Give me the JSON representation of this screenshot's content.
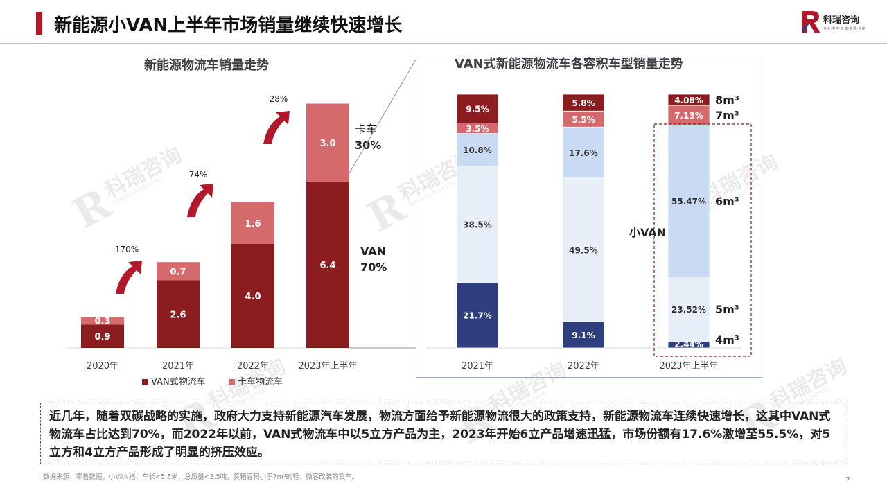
{
  "slide": {
    "title": "新能源小VAN上半年市场销量继续快速增长",
    "logo_name": "科瑞咨询",
    "logo_sub": "专业·专注·价值·前沿·合作",
    "page_number": "7",
    "brand_color": "#b1192a"
  },
  "watermark": {
    "name": "科瑞咨询",
    "sub": "KERUI CONSULTING"
  },
  "summary": {
    "text": "近几年，随着双碳战略的实施，政府大力支持新能源汽车发展，物流方面给予新能源物流很大的政策支持，新能源物流车连续快速增长，这其中VAN式物流车占比达到70%，而2022年以前，VAN式物流车中以5立方产品为主，2023年开始6立产品增速迅猛，市场份额有17.6%激增至55.5%，对5立方和4立方产品形成了明显的挤压效应。"
  },
  "footnote": "数据来源：零售数据，小VAN指：车长<5.5米，总质量<3.5吨，货箱容积小于7m³的轻、微客改装的货车。",
  "chart_data": [
    {
      "type": "bar",
      "stacked": true,
      "title": "新能源物流车销量走势",
      "categories": [
        "2020年",
        "2021年",
        "2022年",
        "2023年上半年"
      ],
      "series": [
        {
          "name": "VAN式物流车",
          "values": [
            0.9,
            2.6,
            4.0,
            6.4
          ],
          "color": "#8b1c1f"
        },
        {
          "name": "卡车物流车",
          "values": [
            0.3,
            0.7,
            1.6,
            3.0
          ],
          "color": "#d46a6c"
        }
      ],
      "growth_labels": [
        "170%",
        "74%",
        "28%"
      ],
      "share_labels": {
        "truck_name": "卡车",
        "truck_share": "30%",
        "van_name": "VAN",
        "van_share": "70%"
      },
      "legend_position": "bottom",
      "grid": false
    },
    {
      "type": "bar",
      "stacked": true,
      "percent": true,
      "title": "VAN式新能源物流车各容积车型销量走势",
      "categories": [
        "2021年",
        "2022年",
        "2023年上半年"
      ],
      "series": [
        {
          "name": "4m³",
          "values": [
            21.7,
            9.1,
            2.44
          ],
          "labels": [
            "21.7%",
            "9.1%",
            "2.44%"
          ],
          "color": "#2f3f7e",
          "text_color": "#ffffff"
        },
        {
          "name": "5m³",
          "values": [
            38.5,
            49.5,
            23.52
          ],
          "labels": [
            "38.5%",
            "49.5%",
            "23.52%"
          ],
          "color": "#e8eef8",
          "text_color": "#333333"
        },
        {
          "name": "6m³",
          "values": [
            10.8,
            17.6,
            55.47
          ],
          "labels": [
            "10.8%",
            "17.6%",
            "55.47%"
          ],
          "color": "#c9dbf2",
          "text_color": "#333333"
        },
        {
          "name": "7m³",
          "values": [
            3.5,
            5.5,
            7.13
          ],
          "labels": [
            "3.5%",
            "5.5%",
            "7.13%"
          ],
          "color": "#d46a6c",
          "text_color": "#ffffff"
        },
        {
          "name": "8m³",
          "values": [
            9.5,
            5.8,
            4.08
          ],
          "labels": [
            "9.5%",
            "5.8%",
            "4.08%"
          ],
          "color": "#8b1c1f",
          "text_color": "#ffffff"
        }
      ],
      "group_label": "小VAN",
      "legend_position": "right",
      "grid": false
    }
  ]
}
